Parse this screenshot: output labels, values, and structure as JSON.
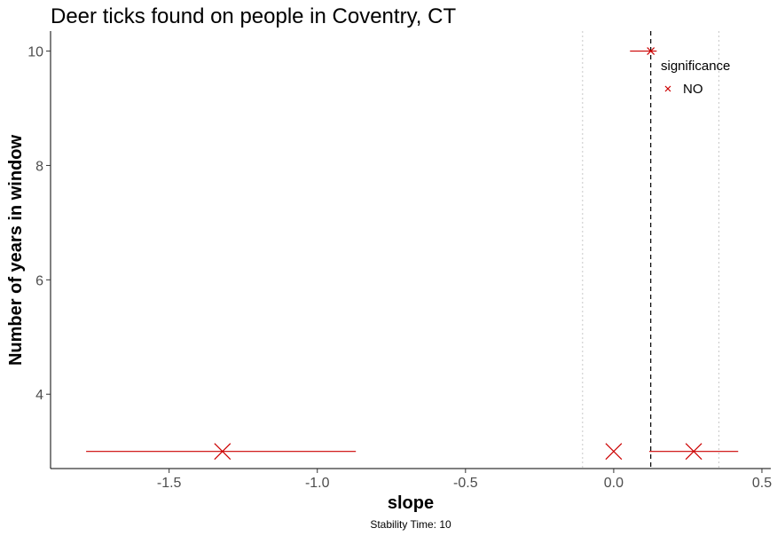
{
  "chart_data": {
    "type": "scatter",
    "title": "Deer ticks found on people in Coventry, CT",
    "xlabel": "slope",
    "ylabel": "Number of years in window",
    "caption": "Stability Time: 10",
    "xlim": [
      -1.9,
      0.53
    ],
    "ylim": [
      2.7,
      10.35
    ],
    "x_ticks": [
      -1.5,
      -1.0,
      -0.5,
      0.0,
      0.5
    ],
    "x_tick_labels": [
      "-1.5",
      "-1.0",
      "-0.5",
      "0.0",
      "0.5"
    ],
    "y_ticks": [
      4,
      6,
      8,
      10
    ],
    "y_tick_labels": [
      "4",
      "6",
      "8",
      "10"
    ],
    "grid": false,
    "reference_lines": {
      "dashed_x": 0.125,
      "dotted_x": [
        -0.105,
        0.355
      ]
    },
    "point_color": "#cc0000",
    "series": [
      {
        "name": "NO",
        "points": [
          {
            "x": -1.32,
            "y": 3,
            "xmin": -1.78,
            "xmax": -0.87
          },
          {
            "x": 0.0,
            "y": 3,
            "xmin": 0.0,
            "xmax": 0.0
          },
          {
            "x": 0.27,
            "y": 3,
            "xmin": 0.12,
            "xmax": 0.42
          },
          {
            "x": 0.125,
            "y": 10,
            "xmin": 0.055,
            "xmax": 0.145
          }
        ]
      }
    ],
    "legend": {
      "title": "significance",
      "entries": [
        "NO"
      ],
      "placement": "top-right"
    }
  }
}
